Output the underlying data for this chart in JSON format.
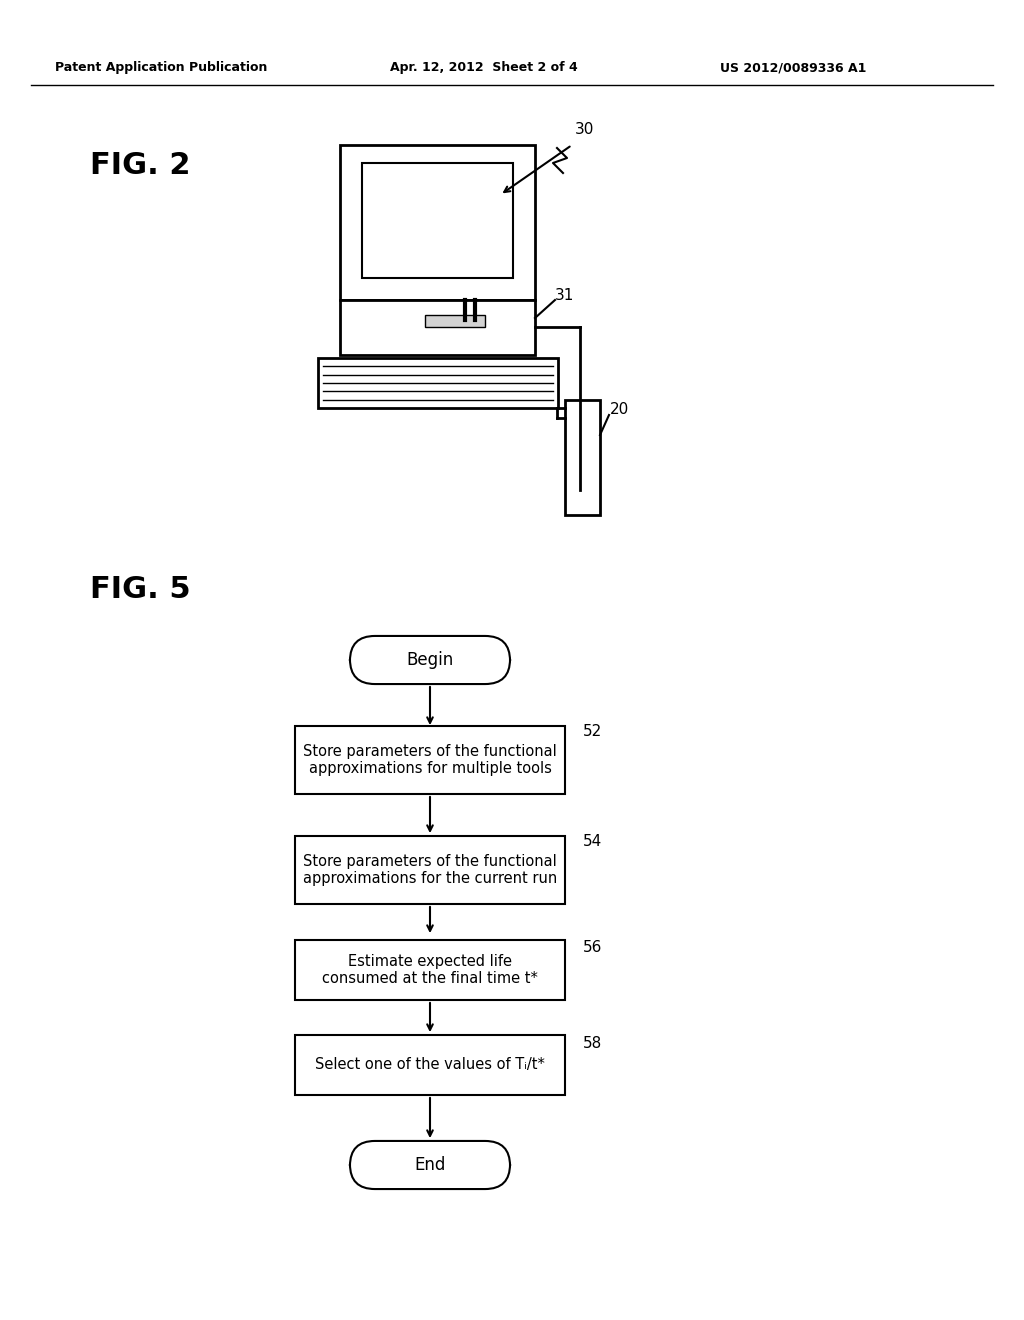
{
  "bg_color": "#ffffff",
  "header_left": "Patent Application Publication",
  "header_mid": "Apr. 12, 2012  Sheet 2 of 4",
  "header_right": "US 2012/0089336 A1",
  "fig2_label": "FIG. 2",
  "fig5_label": "FIG. 5",
  "label_30": "30",
  "label_31": "31",
  "label_20": "20",
  "label_52": "52",
  "label_54": "54",
  "label_56": "56",
  "label_58": "58",
  "box_begin": "Begin",
  "box_52": "Store parameters of the functional\napproximations for multiple tools",
  "box_54": "Store parameters of the functional\napproximations for the current run",
  "box_56": "Estimate expected life\nconsumed at the final time t*",
  "box_58": "Select one of the values of Tᵢ/t*",
  "box_end": "End"
}
